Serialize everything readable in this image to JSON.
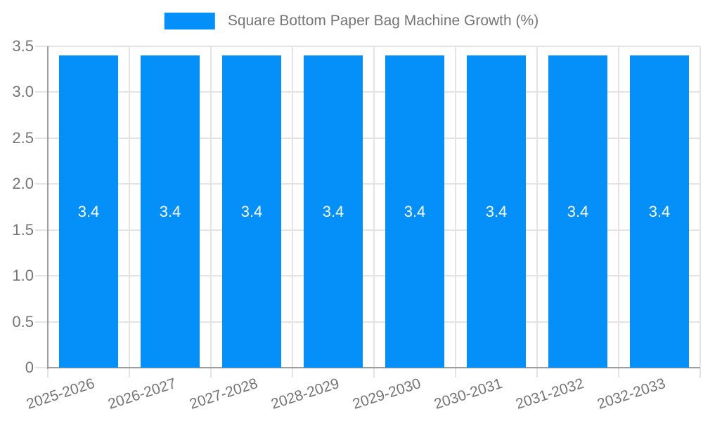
{
  "legend": {
    "label": "Square Bottom Paper Bag Machine Growth (%)"
  },
  "chart_data": {
    "type": "bar",
    "title": "",
    "xlabel": "",
    "ylabel": "",
    "categories": [
      "2025-2026",
      "2026-2027",
      "2027-2028",
      "2028-2029",
      "2029-2030",
      "2030-2031",
      "2031-2032",
      "2032-2033"
    ],
    "series": [
      {
        "name": "Square Bottom Paper Bag Machine Growth (%)",
        "values": [
          3.4,
          3.4,
          3.4,
          3.4,
          3.4,
          3.4,
          3.4,
          3.4
        ]
      }
    ],
    "value_labels": [
      "3.4",
      "3.4",
      "3.4",
      "3.4",
      "3.4",
      "3.4",
      "3.4",
      "3.4"
    ],
    "ylim": [
      0,
      3.5
    ],
    "yticks": [
      0,
      0.5,
      1.0,
      1.5,
      2.0,
      2.5,
      3.0,
      3.5
    ],
    "ytick_labels": [
      "0",
      "0.5",
      "1.0",
      "1.5",
      "2.0",
      "2.5",
      "3.0",
      "3.5"
    ],
    "grid": true,
    "legend_position": "top",
    "colors": {
      "bar": "#0590f9",
      "axis_text": "#757575",
      "gridline": "#e4e4e4",
      "axis_line": "#9e9e9e",
      "bar_label": "#ffffff",
      "background": "#ffffff"
    }
  }
}
